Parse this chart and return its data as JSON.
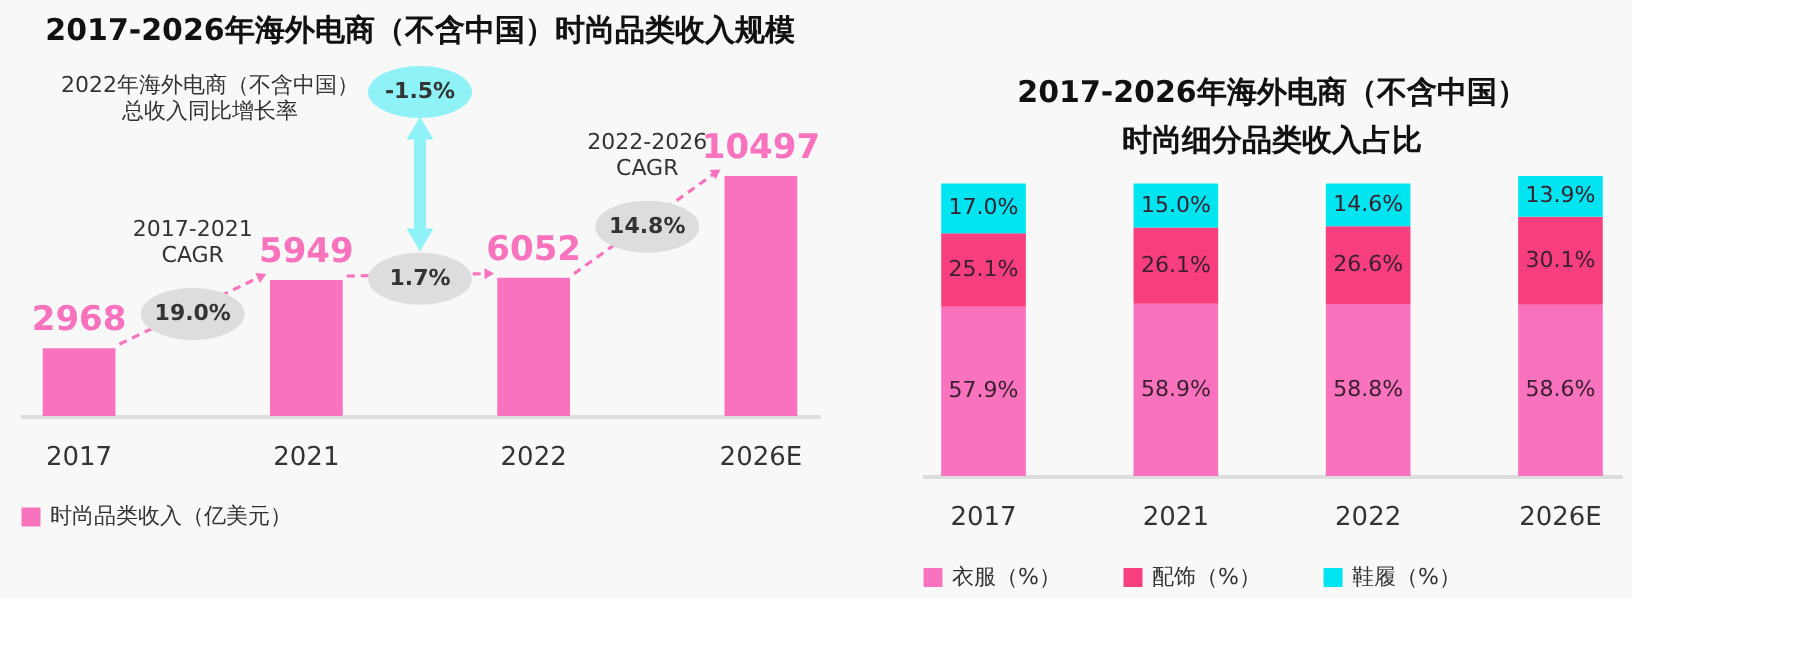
{
  "chart_data": [
    {
      "type": "bar",
      "title": "2017-2026年海外电商（不含中国）时尚品类收入规模",
      "categories": [
        "2017",
        "2021",
        "2022",
        "2026E"
      ],
      "series": [
        {
          "name": "时尚品类收入（亿美元）",
          "color": "#f872bd",
          "values": [
            2968,
            5949,
            6052,
            10497
          ]
        }
      ],
      "data_labels": true,
      "legend": "bottom",
      "annotations": [
        "2022年海外电商（不含中国）总收入同比增长率",
        "-1.5%",
        "2017-2021\nCAGR",
        "19.0%",
        "1.7%",
        "2022-2026\nCAGR",
        "14.8%"
      ]
    },
    {
      "type": "bar",
      "title": "2017-2026年海外电商（不含中国）时尚细分品类收入占比",
      "categories": [
        "2017",
        "2021",
        "2022",
        "2026E"
      ],
      "stacked": true,
      "series": [
        {
          "name": "衣服（%）",
          "color": "#f872bd",
          "values": [
            57.9,
            58.9,
            58.8,
            58.6
          ],
          "value_labels": [
            "57.9%",
            "58.9%",
            "58.8%",
            "58.6%"
          ]
        },
        {
          "name": "配饰（%）",
          "color": "#f73e7f",
          "values": [
            25.1,
            26.1,
            26.6,
            30.1
          ],
          "value_labels": [
            "25.1%",
            "26.1%",
            "26.6%",
            "30.1%"
          ]
        },
        {
          "name": "鞋履（%）",
          "color": "#00e5f0",
          "values": [
            17.0,
            15.0,
            14.6,
            13.9
          ],
          "value_labels": [
            "17.0%",
            "15.0%",
            "14.6%",
            "13.9%"
          ]
        }
      ],
      "legend": "bottom"
    }
  ]
}
